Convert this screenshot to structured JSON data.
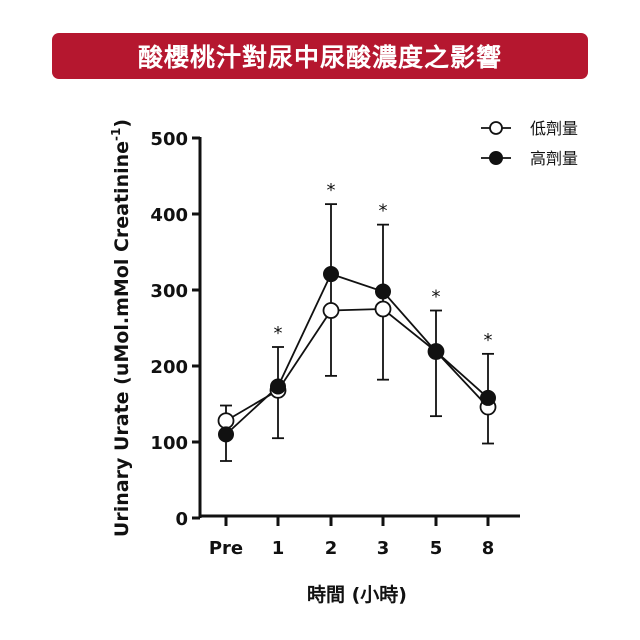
{
  "header": {
    "title": "酸櫻桃汁對尿中尿酸濃度之影響"
  },
  "colors": {
    "title_bg": "#b5172f",
    "title_fg": "#ffffff",
    "ink": "#111111"
  },
  "legend": {
    "items": [
      {
        "label": "低劑量",
        "marker": "open-circle"
      },
      {
        "label": "高劑量",
        "marker": "filled-circle"
      }
    ]
  },
  "axes": {
    "ylabel": "Urinary Urate (uMol.mMol Creatinine",
    "ylabel_sup": "-1",
    "ylabel_close": ")",
    "xlabel": "時間 (小時)",
    "yticks": [
      "0",
      "100",
      "200",
      "300",
      "400",
      "500"
    ],
    "xticks": [
      "Pre",
      "1",
      "2",
      "3",
      "5",
      "8"
    ]
  },
  "chart_data": {
    "type": "line",
    "title": "酸櫻桃汁對尿中尿酸濃度之影響",
    "xlabel": "時間 (小時)",
    "ylabel": "Urinary Urate (uMol.mMol Creatinine -1)",
    "categories": [
      "Pre",
      "1",
      "2",
      "3",
      "5",
      "8"
    ],
    "ylim": [
      0,
      500
    ],
    "yticks": [
      0,
      100,
      200,
      300,
      400,
      500
    ],
    "grid": false,
    "legend_position": "top-right",
    "series": [
      {
        "name": "低劑量",
        "marker": "open-circle",
        "values": [
          128,
          168,
          273,
          275,
          219,
          146
        ],
        "error_lower": [
          null,
          null,
          187,
          182,
          134,
          98
        ]
      },
      {
        "name": "高劑量",
        "marker": "filled-circle",
        "values": [
          110,
          173,
          321,
          298,
          219,
          158
        ],
        "error_upper": [
          148,
          225,
          413,
          386,
          273,
          216
        ],
        "error_lower_pre_1": [
          75,
          105
        ]
      }
    ],
    "error_bars": {
      "upper": [
        148,
        225,
        413,
        386,
        273,
        216
      ],
      "lower": [
        75,
        105,
        187,
        182,
        134,
        98
      ]
    },
    "annotations": [
      {
        "x": "1",
        "text": "*"
      },
      {
        "x": "2",
        "text": "*"
      },
      {
        "x": "3",
        "text": "*"
      },
      {
        "x": "5",
        "text": "*"
      },
      {
        "x": "8",
        "text": "*"
      }
    ]
  }
}
